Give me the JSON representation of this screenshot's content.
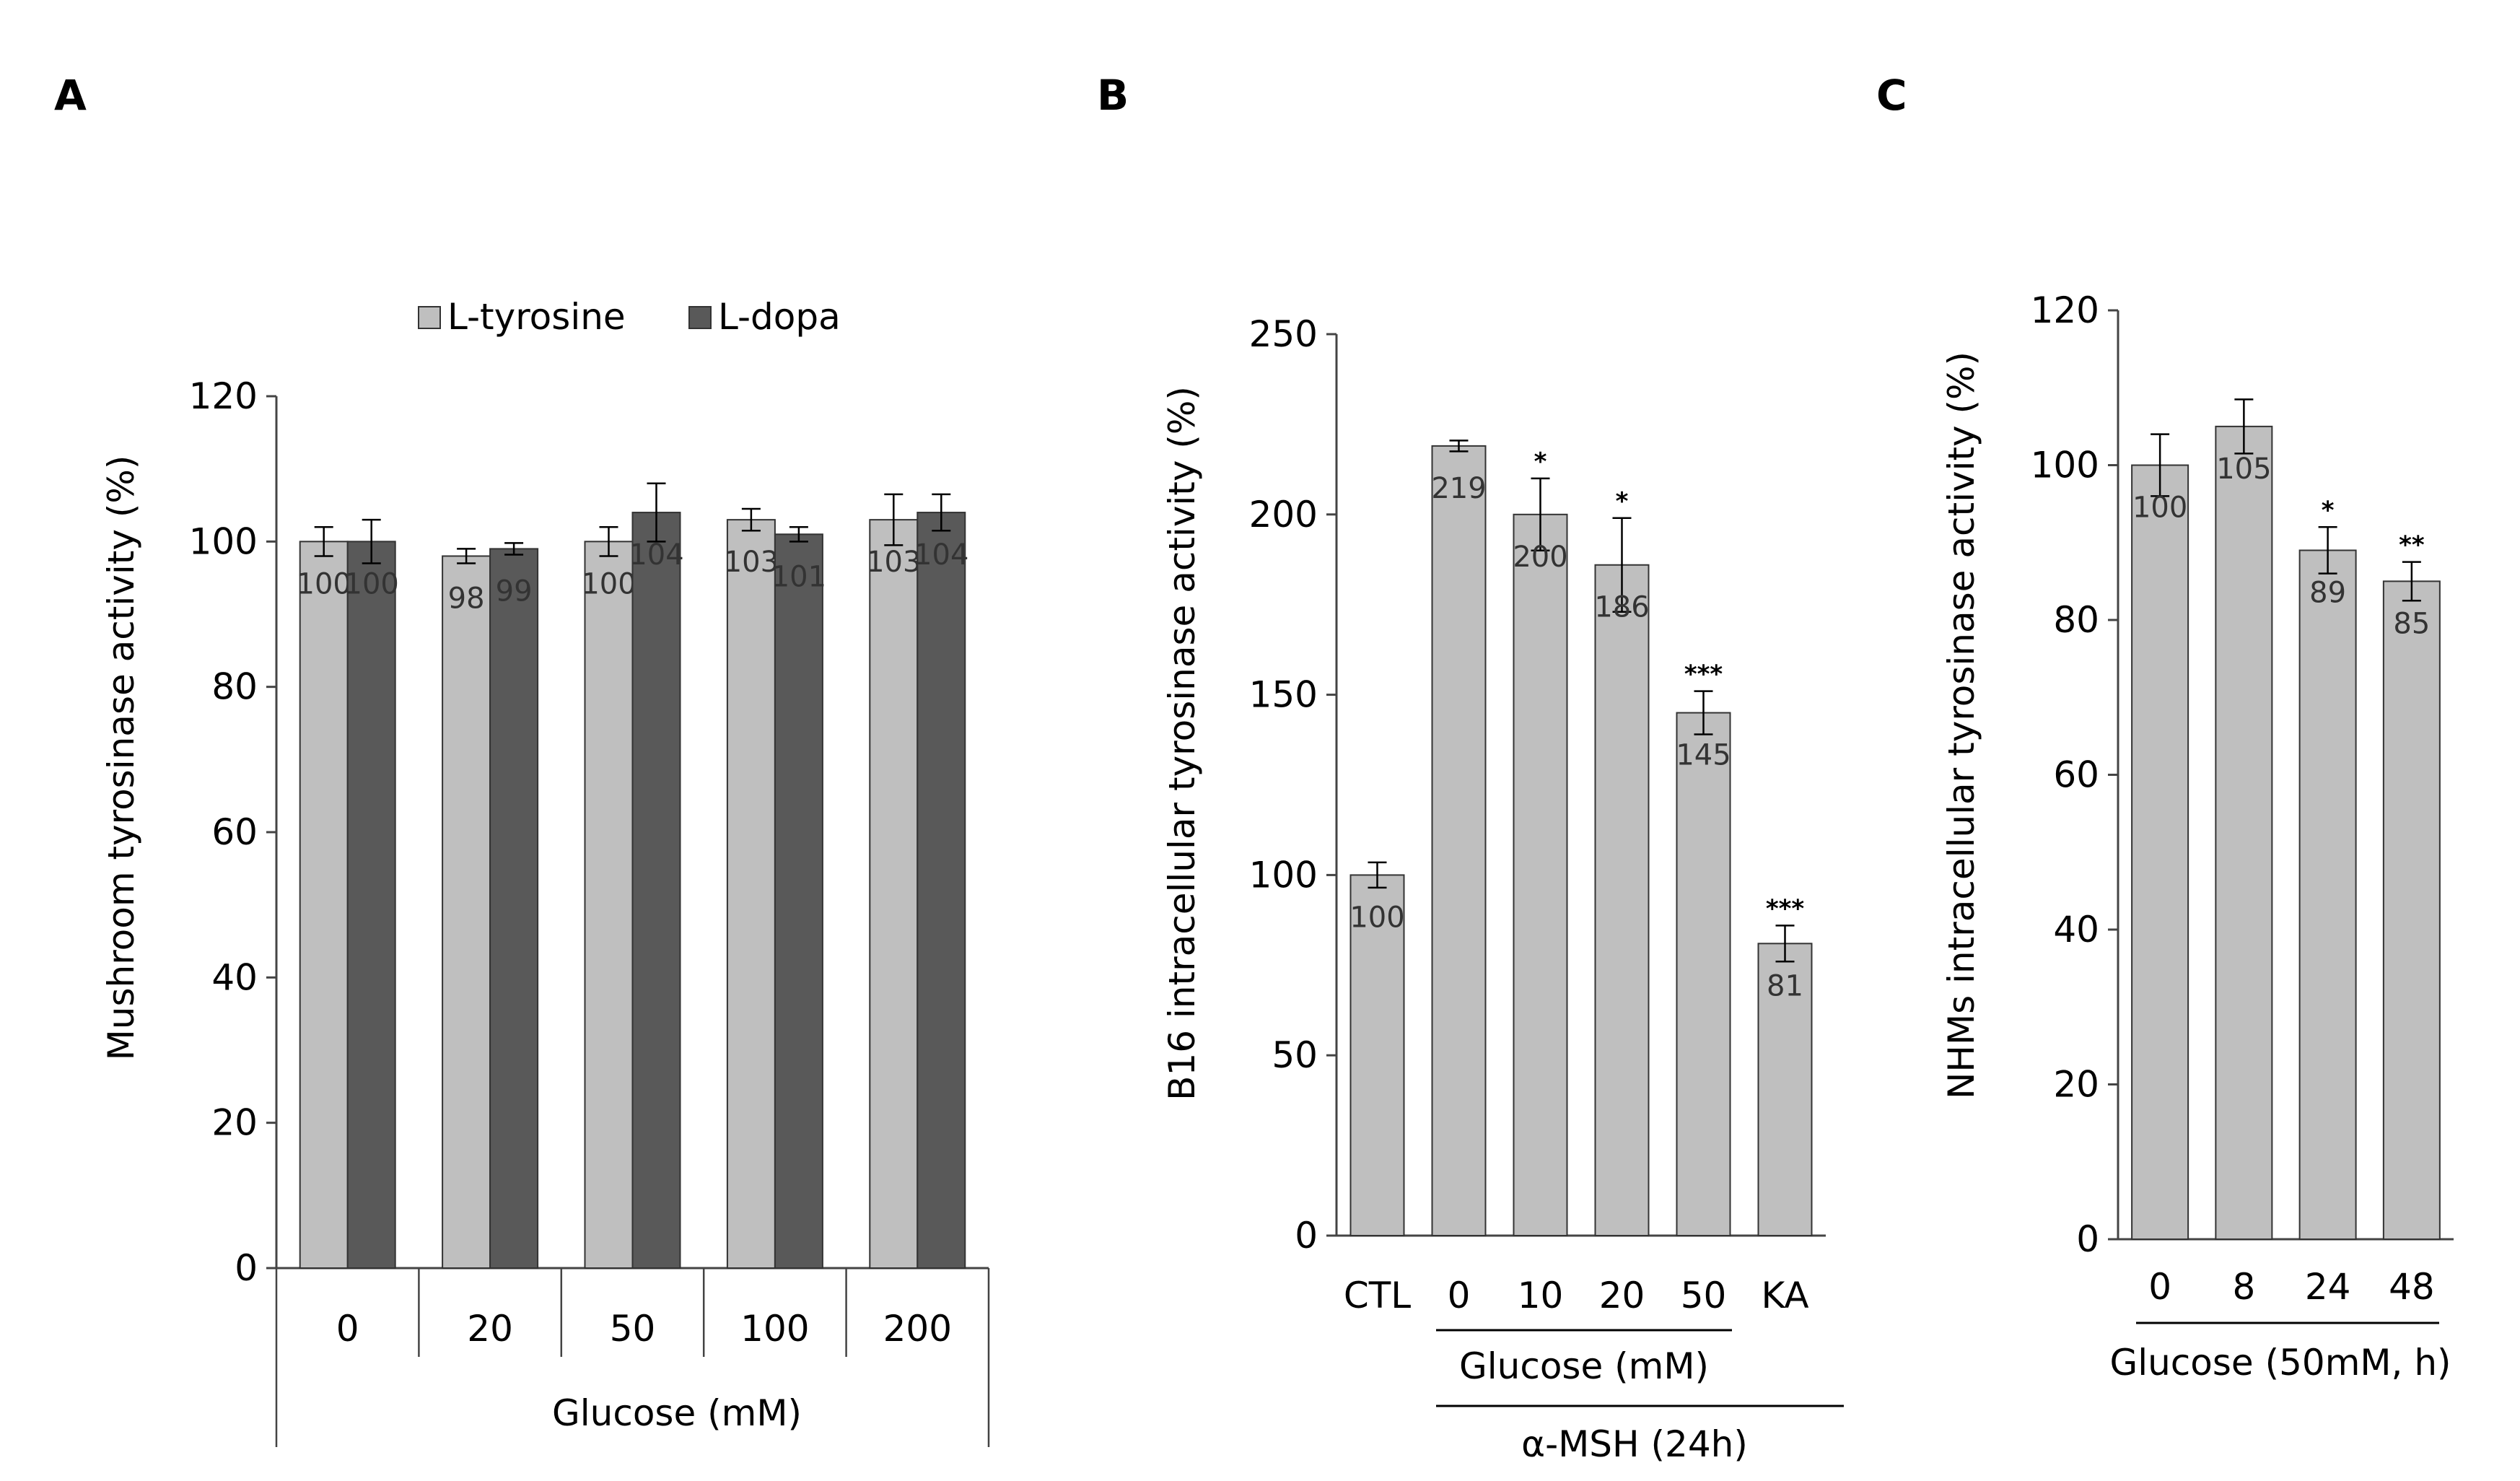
{
  "panels": {
    "a": "A",
    "b": "B",
    "c": "C"
  },
  "colors": {
    "light_bar": "#bfbfbf",
    "dark_bar": "#595959",
    "axis": "#444444",
    "bar_stroke": "#333333"
  },
  "chart_data": [
    {
      "type": "bar",
      "panel": "A",
      "title": "",
      "xlabel": "Glucose (mM)",
      "ylabel": "Mushroom tyrosinase activity (%)",
      "ylim": [
        0,
        120
      ],
      "yticks": [
        0,
        20,
        40,
        60,
        80,
        100,
        120
      ],
      "categories": [
        "0",
        "20",
        "50",
        "100",
        "200"
      ],
      "legend_position": "top",
      "series": [
        {
          "name": "L-tyrosine",
          "color": "#bfbfbf",
          "values": [
            100,
            98,
            100,
            103,
            103
          ],
          "errors": [
            2,
            1,
            2,
            1.5,
            3.5
          ],
          "labels": [
            "100",
            "98",
            "100",
            "103",
            "103"
          ]
        },
        {
          "name": "L-dopa",
          "color": "#595959",
          "values": [
            100,
            99,
            104,
            101,
            104
          ],
          "errors": [
            3,
            0.8,
            4,
            1,
            2.5
          ],
          "labels": [
            "100",
            "99",
            "104",
            "101",
            "104"
          ]
        }
      ]
    },
    {
      "type": "bar",
      "panel": "B",
      "title": "",
      "ylabel": "B16 intracellular tyrosinase activity (%)",
      "ylim": [
        0,
        250
      ],
      "yticks": [
        0,
        50,
        100,
        150,
        200,
        250
      ],
      "categories": [
        "CTL",
        "0",
        "10",
        "20",
        "50",
        "KA"
      ],
      "values": [
        100,
        219,
        200,
        186,
        145,
        81
      ],
      "errors": [
        3.5,
        1.5,
        10,
        13,
        6,
        5
      ],
      "labels": [
        "100",
        "219",
        "200",
        "186",
        "145",
        "81"
      ],
      "significance": [
        "",
        "",
        "*",
        "*",
        "***",
        "***"
      ],
      "group_label_1": "Glucose (mM)",
      "group_label_2": "α-MSH (24h)"
    },
    {
      "type": "bar",
      "panel": "C",
      "title": "",
      "ylabel": "NHMs intracellular tyrosinase activity (%)",
      "ylim": [
        0,
        120
      ],
      "yticks": [
        0,
        20,
        40,
        60,
        80,
        100,
        120
      ],
      "categories": [
        "0",
        "8",
        "24",
        "48"
      ],
      "values": [
        100,
        105,
        89,
        85
      ],
      "errors": [
        4,
        3.5,
        3,
        2.5
      ],
      "labels": [
        "100",
        "105",
        "89",
        "85"
      ],
      "significance": [
        "",
        "",
        "*",
        "**"
      ],
      "xlabel": "Glucose (50mM, h)"
    }
  ]
}
